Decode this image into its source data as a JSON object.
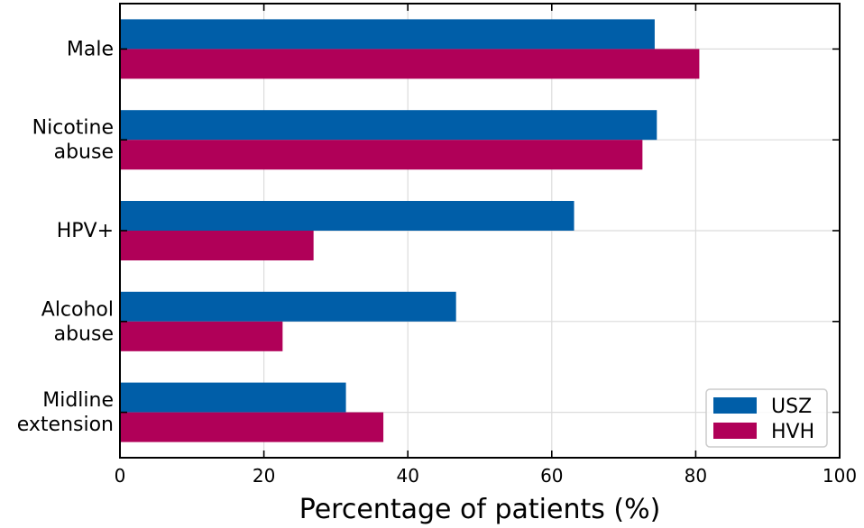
{
  "chart_data": {
    "type": "bar",
    "orientation": "horizontal",
    "categories": [
      "Male",
      "Nicotine\nabuse",
      "HPV+",
      "Alcohol\nabuse",
      "Midline\nextension"
    ],
    "series": [
      {
        "name": "USZ",
        "color": "#005ea8",
        "values": [
          74.3,
          74.6,
          63.1,
          46.7,
          31.4
        ]
      },
      {
        "name": "HVH",
        "color": "#b00058",
        "values": [
          80.5,
          72.6,
          26.9,
          22.6,
          36.6
        ]
      }
    ],
    "xlabel": "Percentage of patients (%)",
    "ylabel": "",
    "xlim": [
      0,
      100
    ],
    "xticks": [
      0,
      20,
      40,
      60,
      80,
      100
    ],
    "grid": true,
    "legend": "lower-right"
  }
}
